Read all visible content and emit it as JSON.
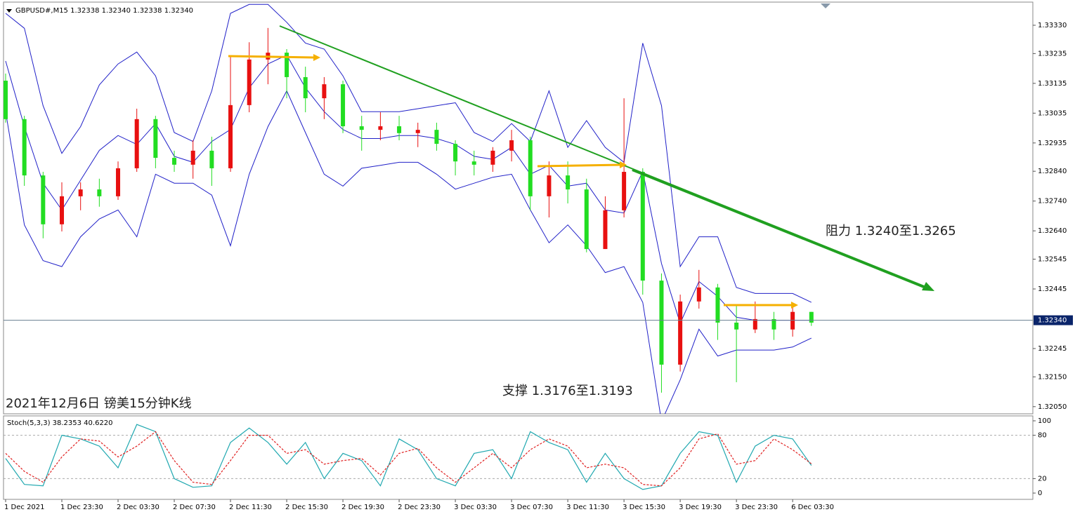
{
  "chart_data": [
    {
      "type": "candlestick",
      "subtitle": "GBPUSD#,M15  1.32338 1.32340 1.32338 1.32340",
      "title": "2021年12月6日 镑美15分钟K线",
      "annotations": [
        "阻力 1.3240至1.3265",
        "支撑 1.3176至1.3193"
      ],
      "ylim": [
        1.32026,
        1.33403
      ],
      "yticks": [
        {
          "value": 1.3333,
          "label": "1.33330"
        },
        {
          "value": 1.33235,
          "label": "1.33235"
        },
        {
          "value": 1.33135,
          "label": "1.33135"
        },
        {
          "value": 1.33035,
          "label": "1.33035"
        },
        {
          "value": 1.32935,
          "label": "1.32935"
        },
        {
          "value": 1.3284,
          "label": "1.32840"
        },
        {
          "value": 1.3274,
          "label": "1.32740"
        },
        {
          "value": 1.3264,
          "label": "1.32640"
        },
        {
          "value": 1.32545,
          "label": "1.32545"
        },
        {
          "value": 1.32445,
          "label": "1.32445"
        },
        {
          "value": 1.32245,
          "label": "1.32245"
        },
        {
          "value": 1.3215,
          "label": "1.32150"
        },
        {
          "value": 1.3205,
          "label": "1.32050"
        }
      ],
      "last_price": {
        "value": 1.3234,
        "label": "1.32340"
      },
      "up_color": "#e81010",
      "down_color": "#22dd22",
      "band_color": "#2020c8",
      "open": [
        1.33144,
        1.33015,
        1.32826,
        1.32662,
        1.32756,
        1.32779,
        1.32756,
        1.3285,
        1.33015,
        1.32885,
        1.32862,
        1.32909,
        1.3285,
        1.33062,
        1.33215,
        1.33238,
        1.33156,
        1.33085,
        1.33132,
        1.32991,
        1.32979,
        1.32991,
        1.32968,
        1.32979,
        1.32932,
        1.32873,
        1.32862,
        1.32909,
        1.32944,
        1.32756,
        1.32826,
        1.32779,
        1.32579,
        1.32709,
        1.32838,
        1.32473,
        1.32191,
        1.32403,
        1.3245,
        1.32332,
        1.32309,
        1.32344,
        1.32309,
        1.32368
      ],
      "high": [
        1.33168,
        1.33026,
        1.32838,
        1.32803,
        1.32803,
        1.32815,
        1.32873,
        1.3305,
        1.33026,
        1.32909,
        1.32944,
        1.32956,
        1.33226,
        1.33273,
        1.33321,
        1.3325,
        1.33191,
        1.33156,
        1.33144,
        1.33026,
        1.33038,
        1.33026,
        1.33003,
        1.33003,
        1.32944,
        1.32909,
        1.32921,
        1.32979,
        1.32956,
        1.32873,
        1.32873,
        1.32815,
        1.32756,
        1.33085,
        1.3285,
        1.32497,
        1.32426,
        1.32509,
        1.32462,
        1.32391,
        1.32403,
        1.32368,
        1.32391,
        1.32368
      ],
      "low": [
        1.33003,
        1.32791,
        1.32615,
        1.32638,
        1.32709,
        1.32721,
        1.32744,
        1.32838,
        1.3285,
        1.32838,
        1.32815,
        1.32791,
        1.32838,
        1.33038,
        1.33132,
        1.33085,
        1.33038,
        1.33015,
        1.32968,
        1.32909,
        1.32944,
        1.32944,
        1.32921,
        1.32909,
        1.32826,
        1.32826,
        1.32838,
        1.32873,
        1.32709,
        1.32685,
        1.32732,
        1.32568,
        1.32579,
        1.32685,
        1.32426,
        1.32097,
        1.32168,
        1.32379,
        1.32274,
        1.32132,
        1.32297,
        1.32274,
        1.32285,
        1.32321
      ],
      "close": [
        1.33015,
        1.32826,
        1.32662,
        1.32756,
        1.32779,
        1.32756,
        1.3285,
        1.33015,
        1.32885,
        1.32862,
        1.32909,
        1.3285,
        1.33062,
        1.33215,
        1.33238,
        1.33156,
        1.33085,
        1.33132,
        1.32991,
        1.32979,
        1.32991,
        1.32968,
        1.32979,
        1.32932,
        1.32873,
        1.32862,
        1.32909,
        1.32944,
        1.32756,
        1.32826,
        1.32779,
        1.32579,
        1.32709,
        1.32838,
        1.32473,
        1.32191,
        1.32403,
        1.3245,
        1.32332,
        1.32309,
        1.32344,
        1.32309,
        1.32368,
        1.32332
      ],
      "upper": [
        1.3337,
        1.3332,
        1.3306,
        1.329,
        1.3299,
        1.3313,
        1.332,
        1.3324,
        1.3316,
        1.3297,
        1.3294,
        1.3311,
        1.3337,
        1.334,
        1.334,
        1.3334,
        1.3327,
        1.3325,
        1.3316,
        1.3304,
        1.3304,
        1.3304,
        1.3305,
        1.3306,
        1.3307,
        1.3297,
        1.3294,
        1.33,
        1.3294,
        1.3311,
        1.3292,
        1.3301,
        1.3292,
        1.3287,
        1.3327,
        1.3306,
        1.3252,
        1.3262,
        1.3262,
        1.3245,
        1.3243,
        1.3243,
        1.3243,
        1.324
      ],
      "middle": [
        1.3321,
        1.3299,
        1.328,
        1.3271,
        1.3281,
        1.3291,
        1.3296,
        1.3293,
        1.33,
        1.3289,
        1.3287,
        1.3294,
        1.3298,
        1.3312,
        1.332,
        1.3323,
        1.3312,
        1.3304,
        1.3298,
        1.3295,
        1.3295,
        1.3296,
        1.3296,
        1.3295,
        1.3293,
        1.3289,
        1.3288,
        1.3292,
        1.3283,
        1.3286,
        1.3279,
        1.328,
        1.3271,
        1.327,
        1.3284,
        1.3253,
        1.3233,
        1.3247,
        1.3242,
        1.3235,
        1.3234,
        1.3234,
        1.3234,
        1.3234
      ],
      "lower": [
        1.3304,
        1.3266,
        1.3254,
        1.3252,
        1.3262,
        1.3268,
        1.3271,
        1.3262,
        1.3283,
        1.328,
        1.328,
        1.3276,
        1.3259,
        1.3283,
        1.3299,
        1.3311,
        1.3297,
        1.3283,
        1.3279,
        1.3285,
        1.3286,
        1.3287,
        1.3287,
        1.3283,
        1.3278,
        1.328,
        1.3282,
        1.3283,
        1.3271,
        1.326,
        1.3266,
        1.3259,
        1.325,
        1.3252,
        1.324,
        1.32,
        1.3214,
        1.3231,
        1.3222,
        1.3224,
        1.3224,
        1.3224,
        1.3225,
        1.3228
      ]
    },
    {
      "type": "line",
      "title": "Stoch(5,3,3) 38.2353 40.6220",
      "categories": [
        "1 Dec 2021",
        null,
        null,
        "1 Dec 23:30",
        null,
        null,
        "2 Dec 03:30",
        null,
        null,
        "2 Dec 07:30",
        null,
        null,
        "2 Dec 11:30",
        null,
        null,
        "2 Dec 15:30",
        null,
        null,
        "2 Dec 19:30",
        null,
        null,
        "2 Dec 23:30",
        null,
        null,
        "3 Dec 03:30",
        null,
        null,
        "3 Dec 07:30",
        null,
        null,
        "3 Dec 11:30",
        null,
        null,
        "3 Dec 15:30",
        null,
        null,
        "3 Dec 19:30",
        null,
        null,
        "3 Dec 23:30",
        null,
        null,
        "6 Dec 03:30",
        null
      ],
      "ylim": [
        -8.7,
        106.8
      ],
      "yticks": [
        100,
        80,
        20,
        0
      ],
      "series": [
        {
          "color": "#20a8b0",
          "values": [
            48,
            12,
            10,
            80,
            75,
            65,
            35,
            95,
            85,
            20,
            8,
            10,
            70,
            90,
            70,
            40,
            70,
            20,
            55,
            45,
            10,
            75,
            60,
            20,
            10,
            55,
            60,
            20,
            85,
            70,
            60,
            15,
            55,
            20,
            5,
            10,
            55,
            85,
            80,
            15,
            65,
            80,
            75,
            38.2353
          ]
        },
        {
          "color": "#e02020",
          "values": [
            55,
            30,
            15,
            50,
            75,
            72,
            50,
            65,
            85,
            45,
            15,
            12,
            45,
            80,
            80,
            55,
            60,
            40,
            45,
            48,
            25,
            55,
            62,
            35,
            15,
            35,
            55,
            35,
            60,
            75,
            65,
            35,
            40,
            35,
            12,
            10,
            35,
            75,
            82,
            40,
            45,
            75,
            60,
            40.622
          ]
        }
      ]
    }
  ]
}
